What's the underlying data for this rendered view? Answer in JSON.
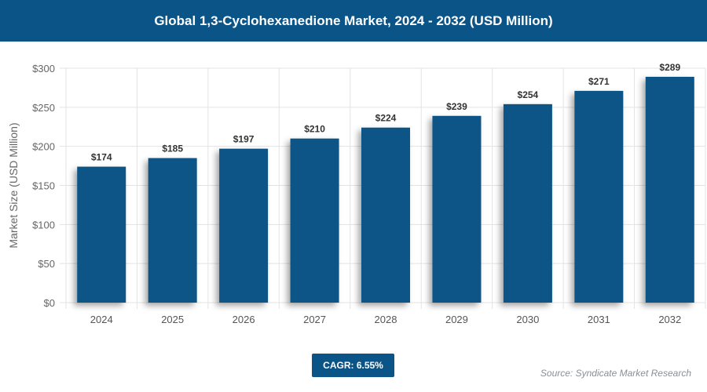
{
  "header": {
    "title": "Global 1,3-Cyclohexanedione Market, 2024 - 2032 (USD Million)"
  },
  "chart_data": {
    "type": "bar",
    "title": "Global 1,3-Cyclohexanedione Market, 2024 - 2032 (USD Million)",
    "xlabel": "",
    "ylabel": "Market Size (USD Million)",
    "categories": [
      "2024",
      "2025",
      "2026",
      "2027",
      "2028",
      "2029",
      "2030",
      "2031",
      "2032"
    ],
    "values": [
      174,
      185,
      197,
      210,
      224,
      239,
      254,
      271,
      289
    ],
    "data_labels": [
      "$174",
      "$185",
      "$197",
      "$210",
      "$224",
      "$239",
      "$254",
      "$271",
      "$289"
    ],
    "ylim": [
      0,
      300
    ],
    "yticks": [
      0,
      50,
      100,
      150,
      200,
      250,
      300
    ],
    "ytick_labels": [
      "$0",
      "$50",
      "$100",
      "$150",
      "$200",
      "$250",
      "$300"
    ],
    "grid": true,
    "bar_color": "#0b5487"
  },
  "footer": {
    "cagr": "CAGR: 6.55%",
    "source": "Source: Syndicate Market Research"
  }
}
